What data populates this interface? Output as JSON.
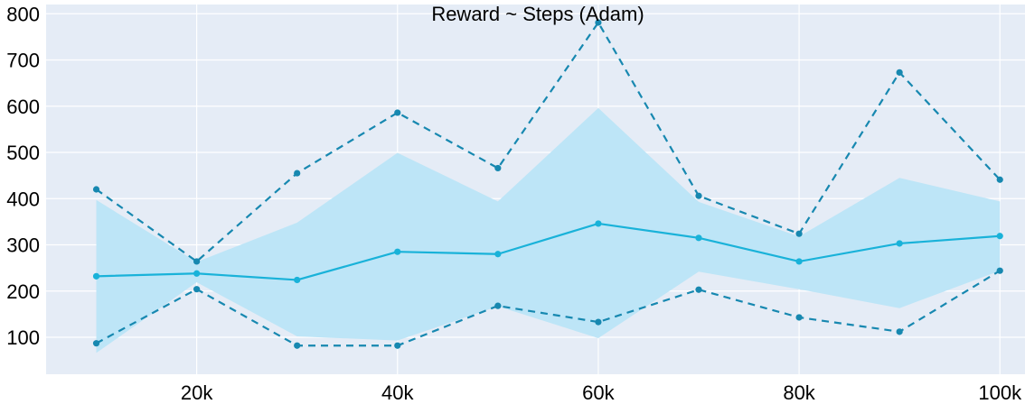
{
  "chart_data": {
    "type": "line",
    "title": "Reward ~ Steps (Adam)",
    "xlabel": "",
    "ylabel": "",
    "x": [
      10000,
      20000,
      30000,
      40000,
      50000,
      60000,
      70000,
      80000,
      90000,
      100000
    ],
    "xlim": [
      5000,
      102500
    ],
    "ylim": [
      20,
      820
    ],
    "x_ticks": [
      20000,
      40000,
      60000,
      80000,
      100000
    ],
    "x_tick_labels": [
      "20k",
      "40k",
      "60k",
      "80k",
      "100k"
    ],
    "y_ticks": [
      100,
      200,
      300,
      400,
      500,
      600,
      700,
      800
    ],
    "y_tick_labels": [
      "100",
      "200",
      "300",
      "400",
      "500",
      "600",
      "700",
      "800"
    ],
    "grid": true,
    "series": [
      {
        "role": "mean",
        "style": "solid",
        "values": [
          232,
          238,
          224,
          285,
          280,
          346,
          315,
          264,
          303,
          319
        ]
      },
      {
        "role": "upper",
        "style": "dashed",
        "values": [
          420,
          264,
          455,
          586,
          466,
          781,
          406,
          324,
          673,
          441
        ]
      },
      {
        "role": "lower",
        "style": "dashed",
        "values": [
          87,
          204,
          82,
          82,
          168,
          133,
          203,
          143,
          112,
          244
        ]
      }
    ],
    "band": {
      "upper": [
        397,
        263,
        348,
        499,
        394,
        596,
        393,
        318,
        445,
        394
      ],
      "lower": [
        66,
        219,
        102,
        93,
        167,
        98,
        242,
        204,
        163,
        244
      ]
    },
    "colors": {
      "plot_bg": "#e5ecf6",
      "grid": "#ffffff",
      "mean_line": "#19b2d9",
      "bound_line": "#1788b0",
      "band_fill": "#bde5f7"
    }
  }
}
